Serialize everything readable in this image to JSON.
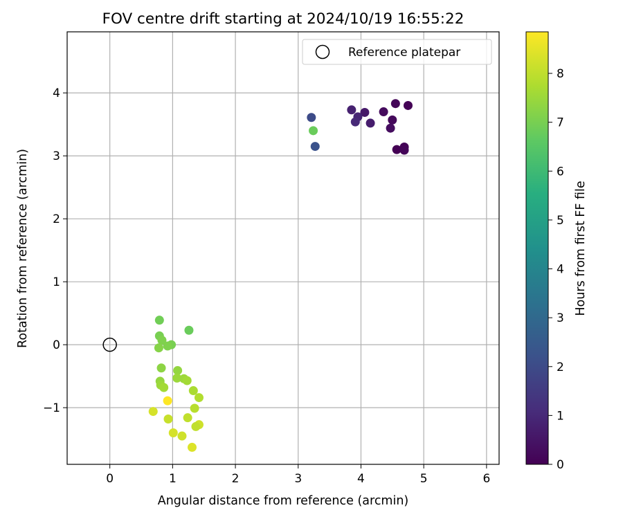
{
  "chart_data": {
    "type": "scatter",
    "title": "FOV centre drift starting at 2024/10/19 16:55:22",
    "xlabel": "Angular distance from reference (arcmin)",
    "ylabel": "Rotation from reference (arcmin)",
    "xlim": [
      -0.68,
      6.2
    ],
    "ylim": [
      -1.9,
      4.97
    ],
    "xticks": [
      "0",
      "1",
      "2",
      "3",
      "4",
      "5",
      "6"
    ],
    "xtick_values": [
      0,
      1,
      2,
      3,
      4,
      5,
      6
    ],
    "yticks": [
      "−1",
      "0",
      "1",
      "2",
      "3",
      "4"
    ],
    "ytick_values": [
      -1,
      0,
      1,
      2,
      3,
      4
    ],
    "grid": true,
    "legend": {
      "label": "Reference platepar",
      "placement": "top-right"
    },
    "reference_point": {
      "x": 0,
      "y": 0
    },
    "colorbar": {
      "label": "Hours from first FF file",
      "colormap": "viridis",
      "range": [
        0,
        8.85
      ],
      "ticks": [
        "0",
        "1",
        "2",
        "3",
        "4",
        "5",
        "6",
        "7",
        "8"
      ],
      "tick_values": [
        0,
        1,
        2,
        3,
        4,
        5,
        6,
        7,
        8
      ]
    },
    "points": [
      {
        "x": 4.55,
        "y": 3.83,
        "t": 0.1
      },
      {
        "x": 4.75,
        "y": 3.8,
        "t": 0.05
      },
      {
        "x": 4.36,
        "y": 3.7,
        "t": 0.25
      },
      {
        "x": 4.5,
        "y": 3.57,
        "t": 0.2
      },
      {
        "x": 4.47,
        "y": 3.44,
        "t": 0.3
      },
      {
        "x": 4.57,
        "y": 3.1,
        "t": 0.0
      },
      {
        "x": 4.69,
        "y": 3.14,
        "t": 0.05
      },
      {
        "x": 4.69,
        "y": 3.09,
        "t": 0.1
      },
      {
        "x": 4.06,
        "y": 3.69,
        "t": 0.6
      },
      {
        "x": 3.85,
        "y": 3.73,
        "t": 0.8
      },
      {
        "x": 3.95,
        "y": 3.62,
        "t": 0.9
      },
      {
        "x": 3.91,
        "y": 3.54,
        "t": 1.0
      },
      {
        "x": 4.15,
        "y": 3.52,
        "t": 0.7
      },
      {
        "x": 3.21,
        "y": 3.61,
        "t": 2.0
      },
      {
        "x": 3.27,
        "y": 3.15,
        "t": 2.2
      },
      {
        "x": 3.24,
        "y": 3.4,
        "t": 6.8
      },
      {
        "x": 0.79,
        "y": 0.39,
        "t": 6.9
      },
      {
        "x": 1.26,
        "y": 0.23,
        "t": 6.8
      },
      {
        "x": 0.79,
        "y": 0.14,
        "t": 7.0
      },
      {
        "x": 0.83,
        "y": 0.07,
        "t": 7.1
      },
      {
        "x": 0.98,
        "y": 0.0,
        "t": 7.0
      },
      {
        "x": 0.92,
        "y": -0.02,
        "t": 7.1
      },
      {
        "x": 0.78,
        "y": -0.05,
        "t": 7.2
      },
      {
        "x": 0.82,
        "y": -0.37,
        "t": 7.3
      },
      {
        "x": 1.08,
        "y": -0.41,
        "t": 7.4
      },
      {
        "x": 1.07,
        "y": -0.53,
        "t": 7.5
      },
      {
        "x": 1.18,
        "y": -0.54,
        "t": 7.5
      },
      {
        "x": 1.23,
        "y": -0.57,
        "t": 7.6
      },
      {
        "x": 0.8,
        "y": -0.58,
        "t": 7.4
      },
      {
        "x": 0.81,
        "y": -0.64,
        "t": 7.5
      },
      {
        "x": 0.86,
        "y": -0.68,
        "t": 7.6
      },
      {
        "x": 1.33,
        "y": -0.73,
        "t": 7.7
      },
      {
        "x": 1.42,
        "y": -0.84,
        "t": 7.8
      },
      {
        "x": 0.92,
        "y": -0.89,
        "t": 8.85
      },
      {
        "x": 1.35,
        "y": -1.01,
        "t": 7.9
      },
      {
        "x": 0.69,
        "y": -1.06,
        "t": 8.3
      },
      {
        "x": 0.93,
        "y": -1.18,
        "t": 8.1
      },
      {
        "x": 1.24,
        "y": -1.16,
        "t": 8.0
      },
      {
        "x": 1.42,
        "y": -1.27,
        "t": 8.2
      },
      {
        "x": 1.37,
        "y": -1.3,
        "t": 8.0
      },
      {
        "x": 1.01,
        "y": -1.4,
        "t": 8.3
      },
      {
        "x": 1.15,
        "y": -1.45,
        "t": 8.2
      },
      {
        "x": 1.31,
        "y": -1.63,
        "t": 8.4
      }
    ]
  }
}
